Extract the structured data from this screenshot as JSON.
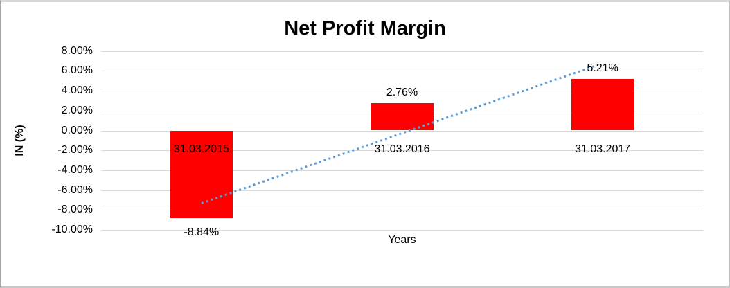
{
  "chart_data": {
    "type": "bar",
    "title": "Net Profit Margin",
    "xlabel": "Years",
    "ylabel": "IN (%)",
    "categories": [
      "31.03.2015",
      "31.03.2016",
      "31.03.2017"
    ],
    "values": [
      -8.84,
      2.76,
      5.21
    ],
    "value_labels": [
      "-8.84%",
      "2.76%",
      "5.21%"
    ],
    "ylim": [
      -10,
      8
    ],
    "ytick_step": 2,
    "ytick_labels": [
      "8.00%",
      "6.00%",
      "4.00%",
      "2.00%",
      "0.00%",
      "-2.00%",
      "-4.00%",
      "-6.00%",
      "-8.00%",
      "-10.00%"
    ],
    "grid": true,
    "legend": "none",
    "bar_color": "#ff0000",
    "text_color": "#000000",
    "gridline_color": "#d9d9d9",
    "trendline": {
      "type": "linear",
      "style": "dotted",
      "color": "#5b9bd5",
      "start_value": -7.32,
      "end_value": 6.74
    }
  }
}
